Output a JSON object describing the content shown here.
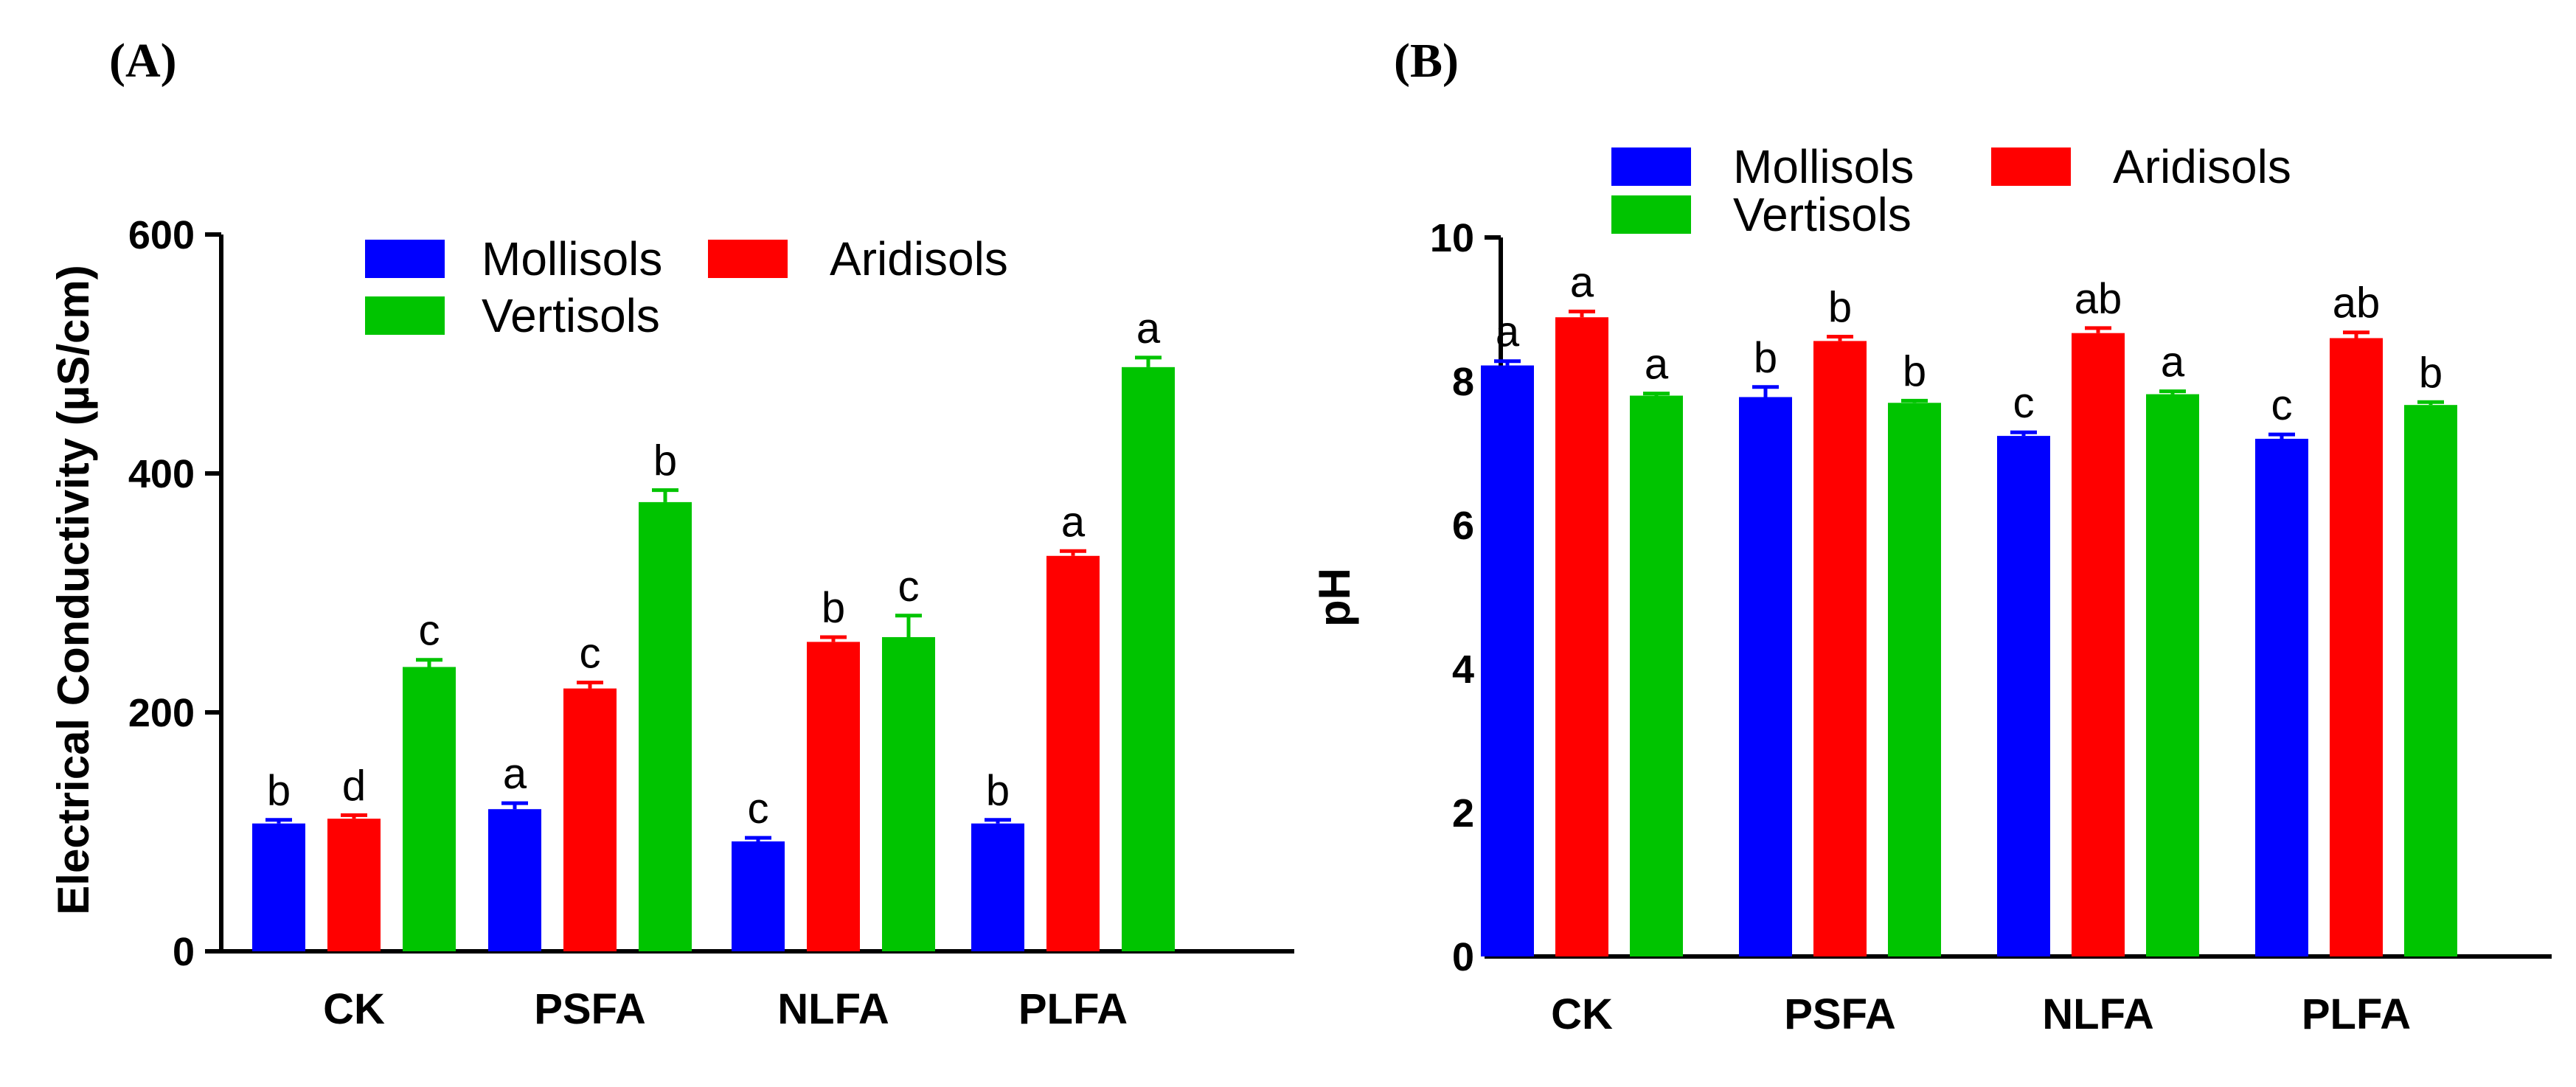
{
  "panels": [
    {
      "label": "(A)",
      "chart_data": {
        "type": "bar",
        "title": "",
        "xlabel": "",
        "ylabel": "Electrical Conductivity (µS/cm)",
        "ylim": [
          0,
          600
        ],
        "yticks": [
          0,
          200,
          400,
          600
        ],
        "categories": [
          "CK",
          "PSFA",
          "NLFA",
          "PLFA"
        ],
        "series": [
          {
            "name": "Mollisols",
            "color": "#0000ff",
            "values": [
              107,
              119,
              92,
              107
            ],
            "errors": [
              3,
              5,
              3,
              3
            ],
            "letters": [
              "b",
              "a",
              "c",
              "b"
            ]
          },
          {
            "name": "Aridisols",
            "color": "#ff0000",
            "values": [
              111,
              220,
              259,
              331
            ],
            "errors": [
              3,
              5,
              4,
              4
            ],
            "letters": [
              "d",
              "c",
              "b",
              "a"
            ]
          },
          {
            "name": "Vertisols",
            "color": "#00c400",
            "values": [
              238,
              376,
              263,
              489
            ],
            "errors": [
              6,
              10,
              18,
              8
            ],
            "letters": [
              "c",
              "b",
              "c",
              "a"
            ]
          }
        ],
        "legend": "top"
      }
    },
    {
      "label": "(B)",
      "chart_data": {
        "type": "bar",
        "title": "",
        "xlabel": "",
        "ylabel": "pH",
        "ylim": [
          0,
          10
        ],
        "yticks": [
          0,
          2,
          4,
          6,
          8,
          10
        ],
        "categories": [
          "CK",
          "PSFA",
          "NLFA",
          "PLFA"
        ],
        "series": [
          {
            "name": "Mollisols",
            "color": "#0000ff",
            "values": [
              8.22,
              7.78,
              7.24,
              7.2
            ],
            "errors": [
              0.06,
              0.14,
              0.05,
              0.06
            ],
            "letters": [
              "a",
              "b",
              "c",
              "c"
            ]
          },
          {
            "name": "Aridisols",
            "color": "#ff0000",
            "values": [
              8.89,
              8.56,
              8.67,
              8.6
            ],
            "errors": [
              0.08,
              0.06,
              0.07,
              0.08
            ],
            "letters": [
              "a",
              "b",
              "ab",
              "ab"
            ]
          },
          {
            "name": "Vertisols",
            "color": "#00c400",
            "values": [
              7.8,
              7.7,
              7.82,
              7.67
            ],
            "errors": [
              0.03,
              0.03,
              0.04,
              0.04
            ],
            "letters": [
              "a",
              "b",
              "a",
              "b"
            ]
          }
        ],
        "legend": "top"
      }
    }
  ]
}
